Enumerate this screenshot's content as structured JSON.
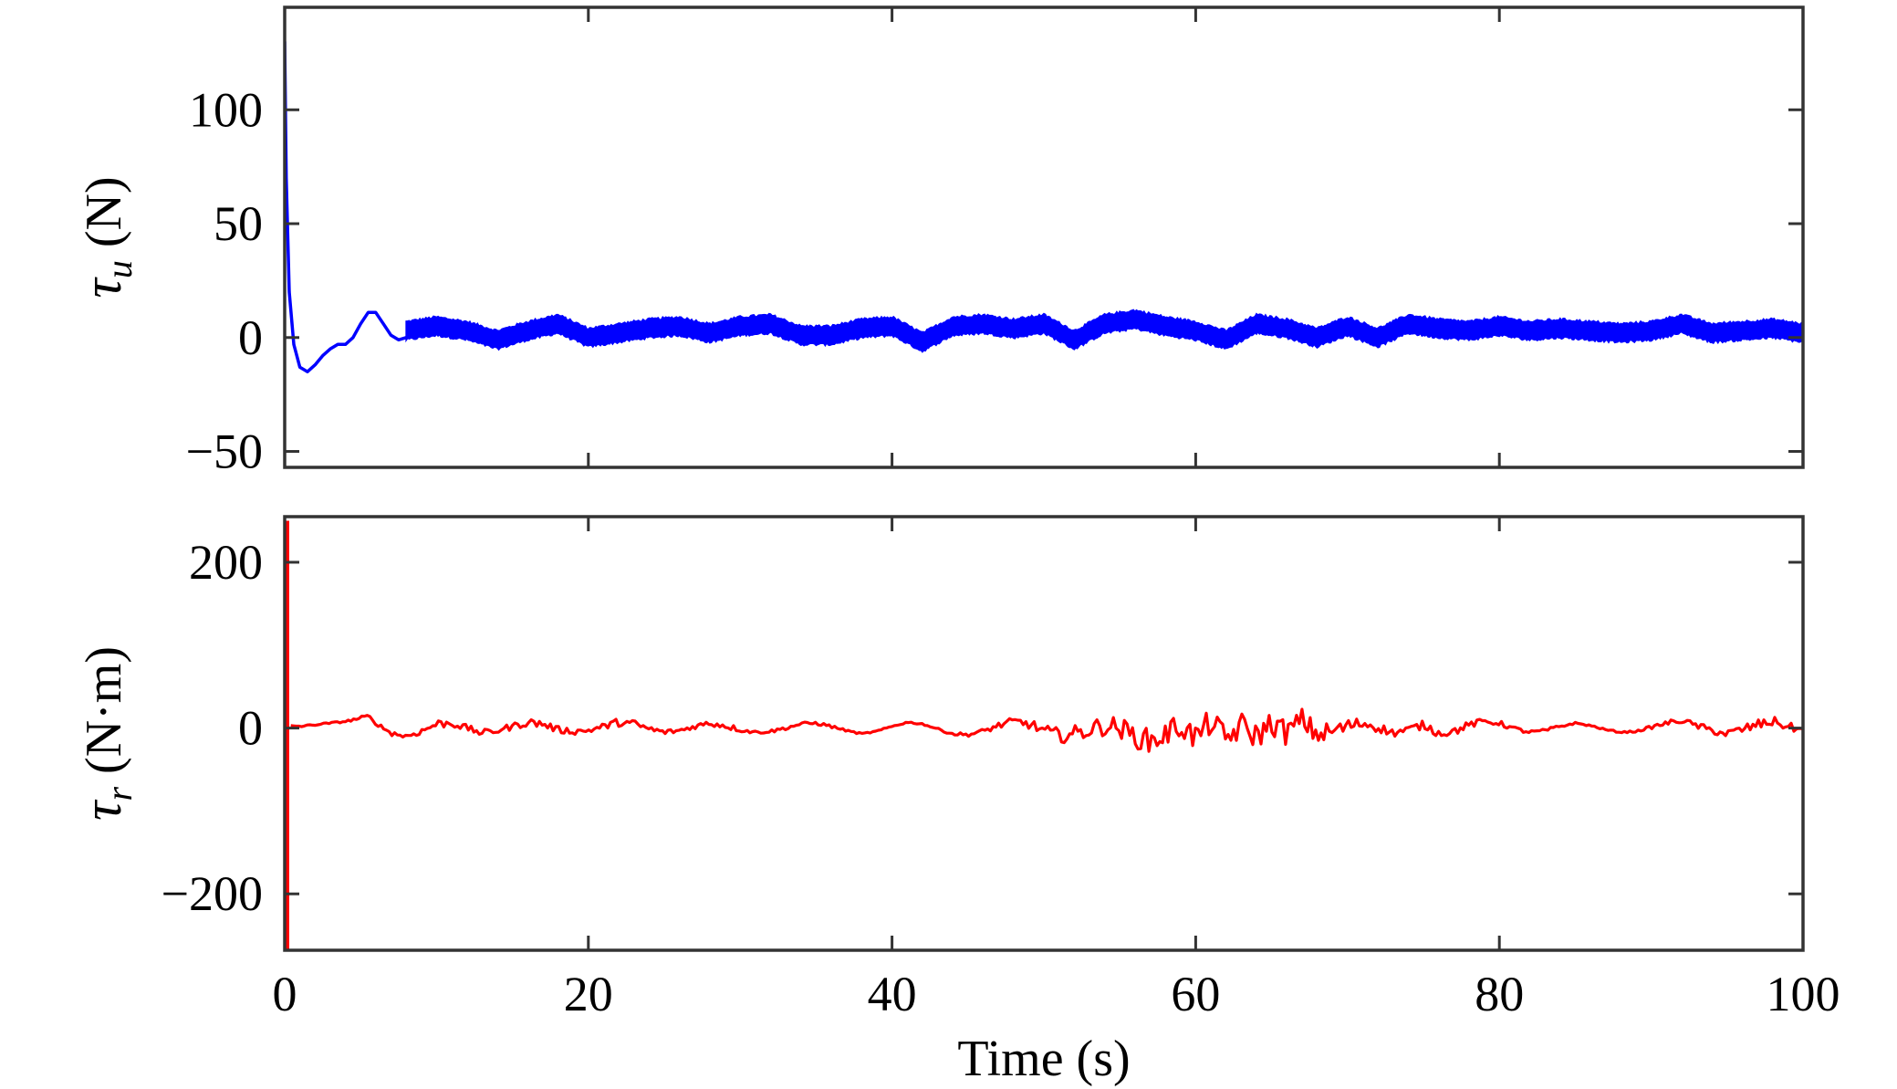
{
  "chart_data": [
    {
      "type": "line",
      "xlim": [
        0,
        100
      ],
      "ylim": [
        -57,
        145
      ],
      "xticks": [
        0,
        20,
        40,
        60,
        80,
        100
      ],
      "yticks": [
        -50,
        0,
        50,
        100
      ],
      "ytick_labels": [
        "−50",
        "0",
        "50",
        "100"
      ],
      "ylabel": {
        "symbol": "τ",
        "subscript": "u",
        "unit": " (N)"
      },
      "show_xtick_labels": false,
      "grid": false,
      "series": [
        {
          "color": "#0000ff",
          "x": [
            0,
            0.1,
            0.3,
            0.6,
            1.0,
            1.5,
            2.0,
            2.5,
            3.0,
            3.5,
            4.0,
            4.5,
            5.0,
            5.5,
            6.0,
            6.5,
            7.0,
            7.5,
            8.0
          ],
          "y": [
            130,
            70,
            20,
            -3,
            -13,
            -15,
            -12,
            -8,
            -5,
            -3,
            -3,
            0,
            6,
            11,
            11,
            6,
            1,
            -1,
            0
          ],
          "band": {
            "x_start": 8,
            "x_end": 100,
            "x": [
              8,
              10,
              12,
              14,
              16,
              18,
              20,
              22,
              24,
              26,
              28,
              30,
              32,
              34,
              36,
              38,
              40,
              42,
              44,
              46,
              48,
              50,
              52,
              54,
              56,
              58,
              60,
              62,
              64,
              66,
              68,
              70,
              72,
              74,
              76,
              78,
              80,
              82,
              84,
              86,
              88,
              90,
              92,
              94,
              96,
              98,
              100
            ],
            "center": [
              3,
              5,
              3,
              -1,
              3,
              6,
              0,
              2,
              4,
              5,
              2,
              5,
              6,
              1,
              1,
              4,
              5,
              -2,
              5,
              6,
              4,
              6,
              -1,
              6,
              8,
              5,
              3,
              -1,
              6,
              4,
              0,
              5,
              0,
              6,
              4,
              3,
              5,
              3,
              4,
              3,
              2,
              3,
              6,
              2,
              3,
              4,
              2
            ],
            "half_width": 4
          }
        }
      ]
    },
    {
      "type": "line",
      "xlim": [
        0,
        100
      ],
      "ylim": [
        -268,
        255
      ],
      "xticks": [
        0,
        20,
        40,
        60,
        80,
        100
      ],
      "xtick_labels": [
        "0",
        "20",
        "40",
        "60",
        "80",
        "100"
      ],
      "yticks": [
        -200,
        0,
        200
      ],
      "ytick_labels": [
        "−200",
        "0",
        "200"
      ],
      "ylabel": {
        "symbol": "τ",
        "subscript": "r",
        "unit": " (N·m)"
      },
      "xlabel": "Time (s)",
      "show_xtick_labels": true,
      "grid": false,
      "series": [
        {
          "color": "#ff0000",
          "spike": {
            "x": 0.15,
            "y_min": -268,
            "y_max": 250
          },
          "x": [
            0.4,
            1,
            2,
            3,
            4,
            5,
            5.5,
            6,
            7,
            8,
            9,
            10,
            11,
            12,
            13,
            14,
            15,
            16,
            17,
            18,
            19,
            20,
            21,
            22,
            23,
            24,
            25,
            26,
            27,
            28,
            29,
            30,
            31,
            32,
            33,
            34,
            35,
            36,
            37,
            38,
            39,
            40,
            41,
            42,
            43,
            44,
            45,
            46,
            47,
            48,
            49,
            50,
            51,
            52,
            53,
            54,
            55,
            56,
            57,
            58,
            59,
            60,
            61,
            62,
            63,
            64,
            65,
            66,
            67,
            68,
            69,
            70,
            71,
            72,
            73,
            74,
            75,
            76,
            77,
            78,
            79,
            80,
            81,
            82,
            83,
            84,
            85,
            86,
            87,
            88,
            89,
            90,
            91,
            92,
            93,
            94,
            95,
            96,
            97,
            98,
            99,
            100
          ],
          "y": [
            3,
            2,
            4,
            6,
            8,
            12,
            14,
            6,
            -6,
            -10,
            -4,
            5,
            6,
            0,
            -6,
            -3,
            2,
            7,
            5,
            -2,
            -4,
            -3,
            2,
            7,
            5,
            -1,
            -5,
            -3,
            2,
            6,
            3,
            -2,
            -5,
            -4,
            0,
            5,
            6,
            2,
            -3,
            -7,
            -4,
            2,
            7,
            5,
            -1,
            -7,
            -8,
            -4,
            3,
            8,
            5,
            -3,
            -9,
            -7,
            -2,
            3,
            0,
            -10,
            -16,
            -8,
            4,
            -12,
            8,
            -14,
            3,
            -10,
            6,
            -6,
            10,
            -8,
            -4,
            2,
            6,
            1,
            -6,
            -2,
            4,
            -6,
            -4,
            4,
            8,
            6,
            -1,
            -5,
            -3,
            2,
            6,
            3,
            -2,
            -5,
            -4,
            1,
            6,
            9,
            3,
            -3,
            -7,
            -2,
            4,
            8,
            2,
            -3
          ],
          "jitter": [
            0,
            1,
            1,
            1,
            1,
            2,
            3,
            2,
            3,
            3,
            4,
            5,
            5,
            4,
            4,
            4,
            4,
            5,
            5,
            4,
            4,
            3,
            4,
            5,
            5,
            4,
            3,
            3,
            3,
            4,
            4,
            3,
            2,
            2,
            2,
            2,
            2,
            2,
            1,
            1,
            1,
            1,
            1,
            1,
            1,
            2,
            2,
            3,
            4,
            5,
            6,
            7,
            9,
            10,
            11,
            12,
            13,
            14,
            15,
            16,
            16,
            16,
            16,
            16,
            16,
            16,
            15,
            15,
            14,
            13,
            12,
            9,
            7,
            6,
            5,
            5,
            5,
            5,
            5,
            4,
            4,
            3,
            3,
            2,
            2,
            2,
            1,
            1,
            1,
            1,
            1,
            2,
            3,
            3,
            4,
            4,
            5,
            6,
            6,
            6,
            5,
            5
          ]
        }
      ]
    }
  ]
}
